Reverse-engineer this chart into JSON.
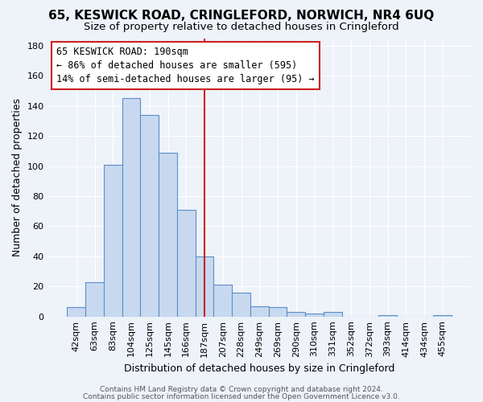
{
  "title": "65, KESWICK ROAD, CRINGLEFORD, NORWICH, NR4 6UQ",
  "subtitle": "Size of property relative to detached houses in Cringleford",
  "xlabel": "Distribution of detached houses by size in Cringleford",
  "ylabel": "Number of detached properties",
  "categories": [
    "42sqm",
    "63sqm",
    "83sqm",
    "104sqm",
    "125sqm",
    "145sqm",
    "166sqm",
    "187sqm",
    "207sqm",
    "228sqm",
    "249sqm",
    "269sqm",
    "290sqm",
    "310sqm",
    "331sqm",
    "352sqm",
    "372sqm",
    "393sqm",
    "414sqm",
    "434sqm",
    "455sqm"
  ],
  "values": [
    6,
    23,
    101,
    145,
    134,
    109,
    71,
    40,
    21,
    16,
    7,
    6,
    3,
    2,
    3,
    0,
    0,
    1,
    0,
    0,
    1
  ],
  "bar_color": "#c8d9ef",
  "bar_edge_color": "#5b8fc9",
  "highlight_index": 7,
  "highlight_color": "#cc2222",
  "annotation_line1": "65 KESWICK ROAD: 190sqm",
  "annotation_line2": "← 86% of detached houses are smaller (595)",
  "annotation_line3": "14% of semi-detached houses are larger (95) →",
  "annotation_box_color": "#ffffff",
  "annotation_box_edge_color": "#cc2222",
  "ylim": [
    0,
    185
  ],
  "yticks": [
    0,
    20,
    40,
    60,
    80,
    100,
    120,
    140,
    160,
    180
  ],
  "background_color": "#eef2f9",
  "grid_color": "#ffffff",
  "footer_line1": "Contains HM Land Registry data © Crown copyright and database right 2024.",
  "footer_line2": "Contains public sector information licensed under the Open Government Licence v3.0.",
  "title_fontsize": 11,
  "subtitle_fontsize": 9.5,
  "xlabel_fontsize": 9,
  "ylabel_fontsize": 9,
  "tick_fontsize": 8,
  "footer_fontsize": 6.5
}
